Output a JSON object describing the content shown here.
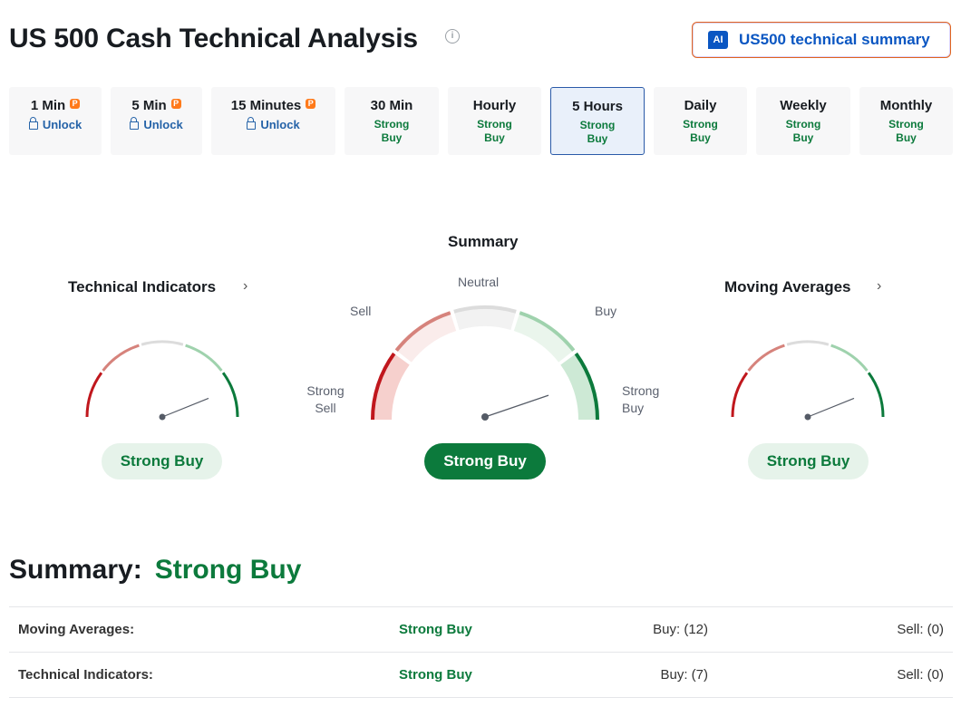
{
  "page": {
    "title": "US 500 Cash Technical Analysis",
    "info_icon": "i"
  },
  "ai_button": {
    "badge": "AI",
    "label": "US500 technical summary"
  },
  "tabs": [
    {
      "name": "1 Min",
      "pro": true,
      "status": "Unlock",
      "locked": true
    },
    {
      "name": "5 Min",
      "pro": true,
      "status": "Unlock",
      "locked": true
    },
    {
      "name": "15 Minutes",
      "pro": true,
      "status": "Unlock",
      "locked": true
    },
    {
      "name": "30 Min",
      "status_line1": "Strong",
      "status_line2": "Buy"
    },
    {
      "name": "Hourly",
      "status_line1": "Strong",
      "status_line2": "Buy"
    },
    {
      "name": "5 Hours",
      "status_line1": "Strong",
      "status_line2": "Buy",
      "active": true
    },
    {
      "name": "Daily",
      "status_line1": "Strong",
      "status_line2": "Buy"
    },
    {
      "name": "Weekly",
      "status_line1": "Strong",
      "status_line2": "Buy"
    },
    {
      "name": "Monthly",
      "status_line1": "Strong",
      "status_line2": "Buy"
    }
  ],
  "pro_badge": "P",
  "gauges": {
    "summary": {
      "title": "Summary",
      "labels": {
        "neutral": "Neutral",
        "sell": "Sell",
        "buy": "Buy",
        "strong_sell_1": "Strong",
        "strong_sell_2": "Sell",
        "strong_buy_1": "Strong",
        "strong_buy_2": "Buy"
      },
      "result": "Strong Buy"
    },
    "technical_indicators": {
      "title": "Technical Indicators",
      "chevron": "›",
      "result": "Strong Buy"
    },
    "moving_averages": {
      "title": "Moving Averages",
      "chevron": "›",
      "result": "Strong Buy"
    }
  },
  "summary_section": {
    "label": "Summary:",
    "value": "Strong Buy",
    "rows": [
      {
        "name": "Moving Averages:",
        "signal": "Strong Buy",
        "buy": "Buy: (12)",
        "sell": "Sell: (0)"
      },
      {
        "name": "Technical Indicators:",
        "signal": "Strong Buy",
        "buy": "Buy: (7)",
        "sell": "Sell: (0)"
      }
    ]
  },
  "colors": {
    "strong_buy": "#0c7a3c",
    "strong_sell": "#c0171d",
    "sell": "#d6837c",
    "buy": "#9fd2ad",
    "neutral": "#dcdcdc",
    "accent": "#0a56c2"
  }
}
